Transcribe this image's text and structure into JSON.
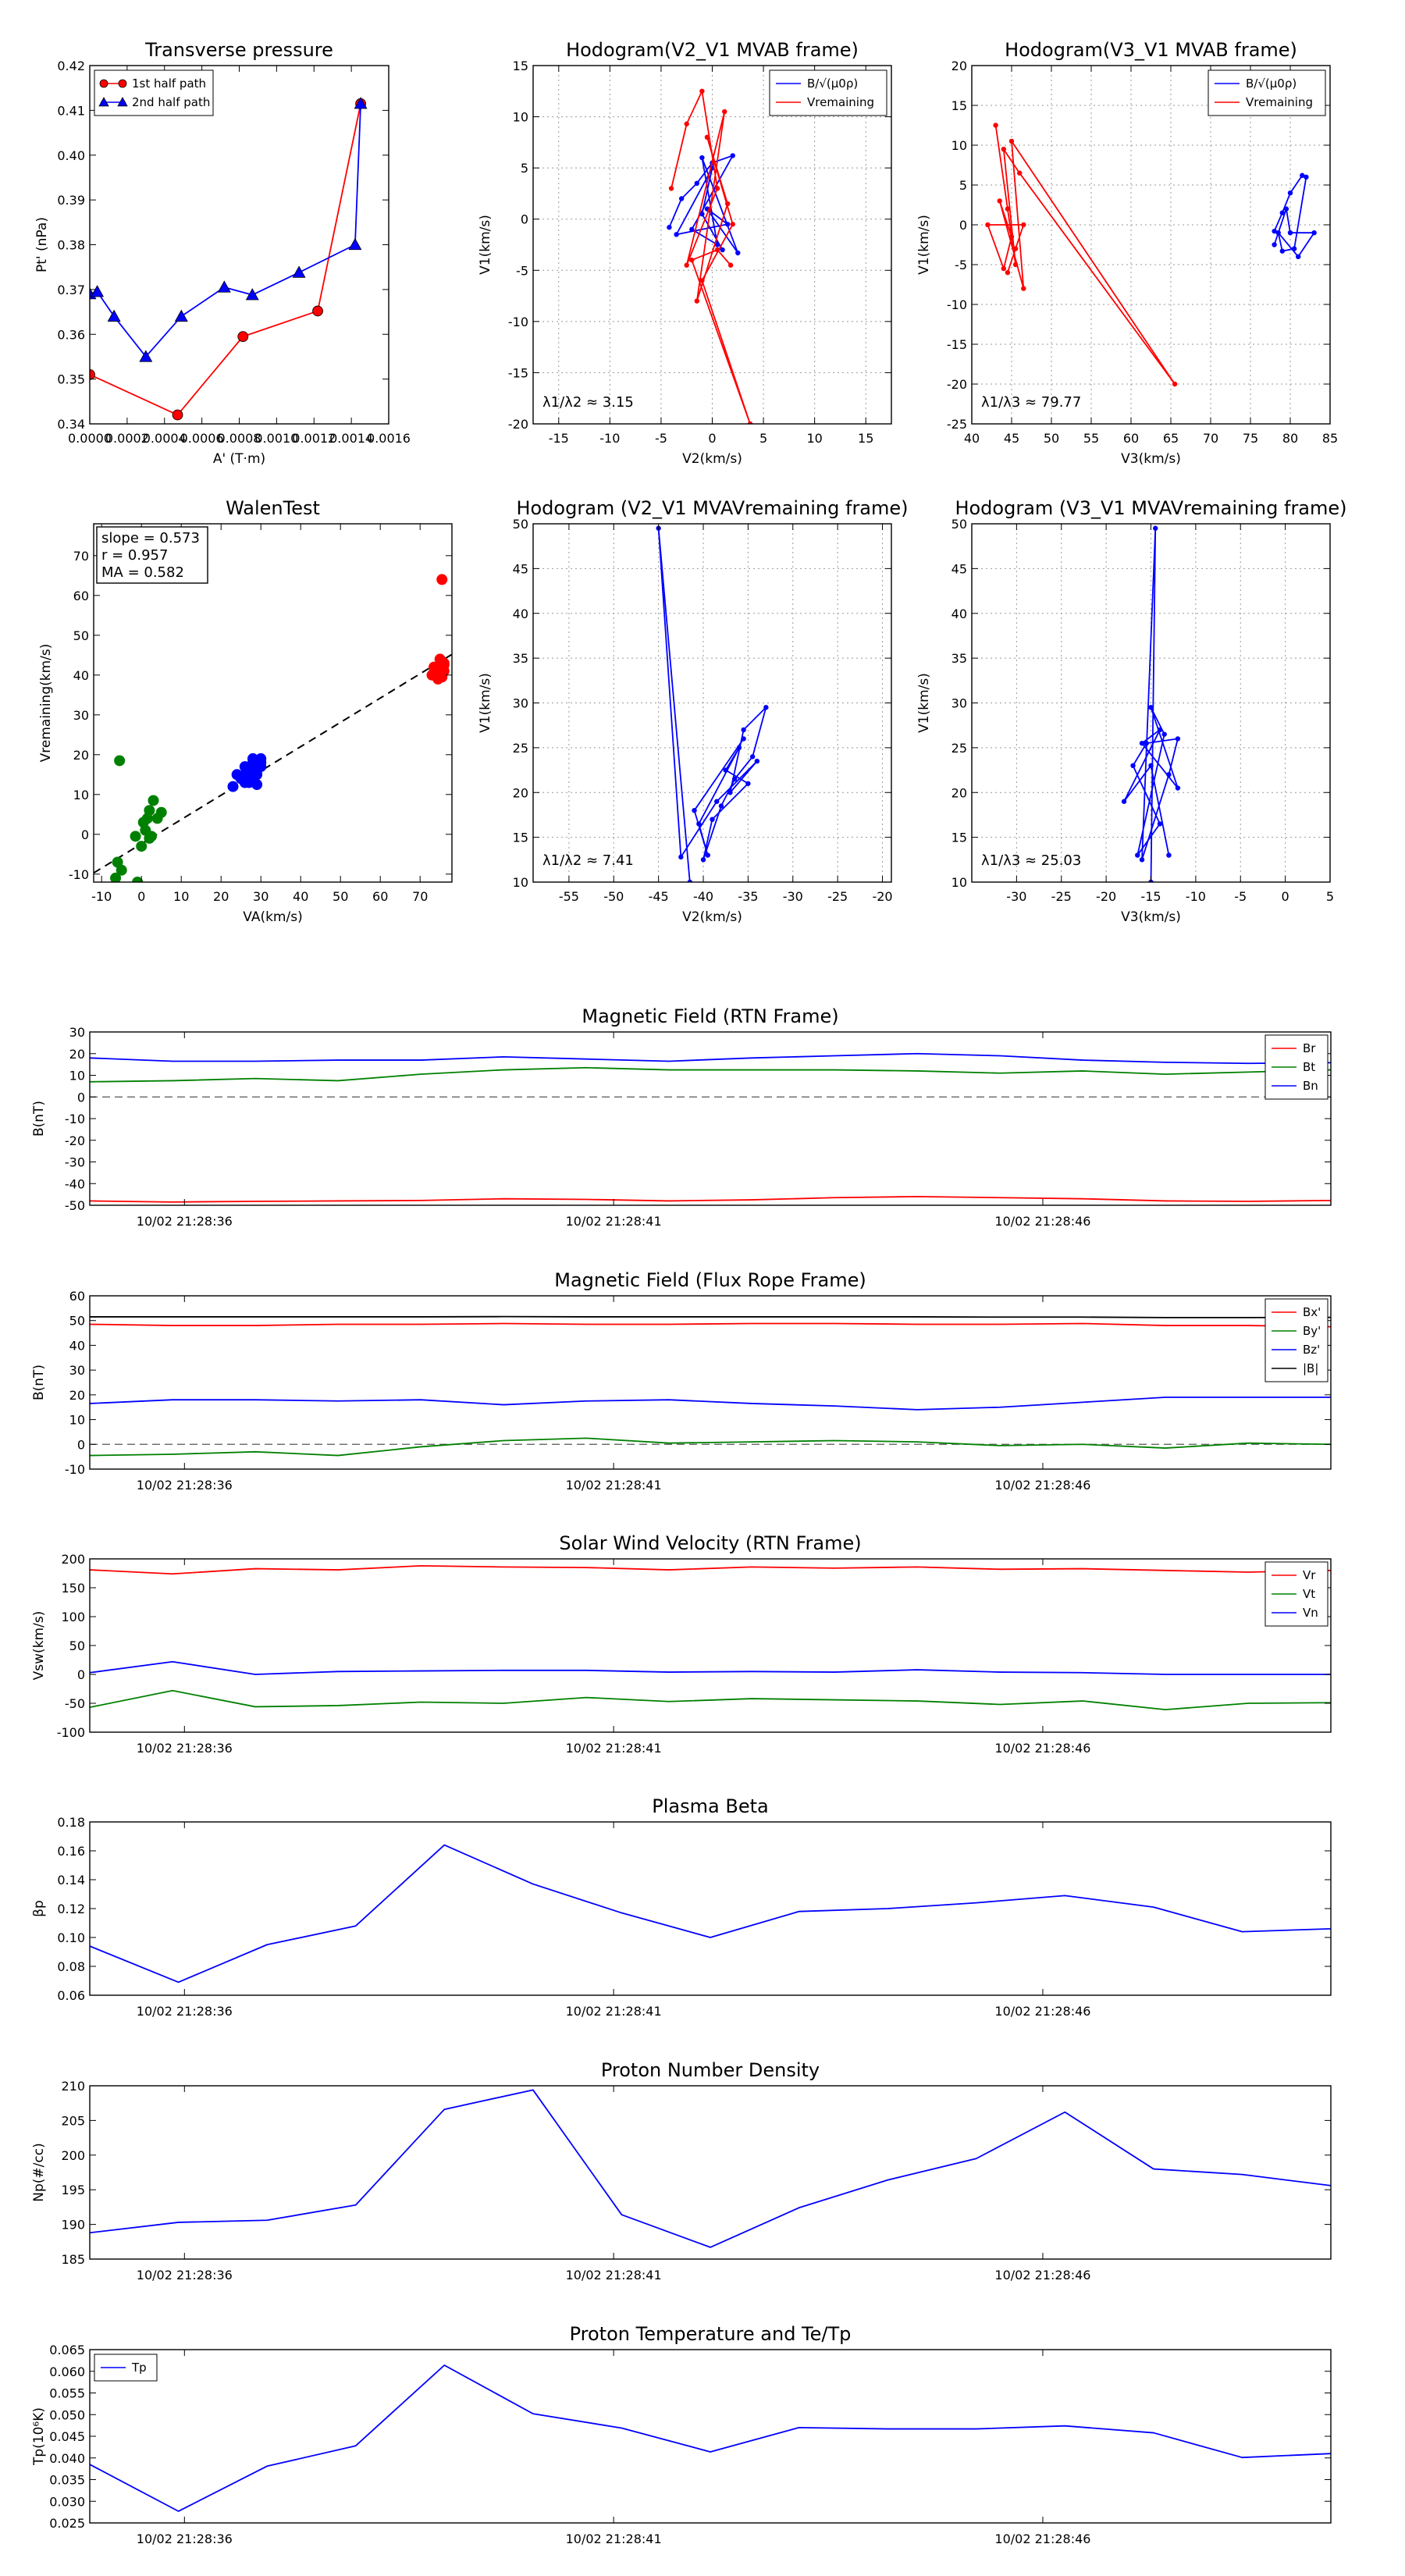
{
  "figure": {
    "background": "#ffffff"
  },
  "colors": {
    "red": "#ff0000",
    "green": "#008000",
    "blue": "#0000ff",
    "black": "#000000",
    "grid": "#b0b0b0"
  },
  "chart_data": [
    {
      "id": "transverse-pressure",
      "type": "line",
      "title": "Transverse pressure",
      "xlabel": "A' (T·m)",
      "ylabel": "Pt' (nPa)",
      "xlim": [
        0,
        0.0016
      ],
      "ylim": [
        0.34,
        0.42
      ],
      "xticks": [
        "0.0000",
        "0.0002",
        "0.0004",
        "0.0006",
        "0.0008",
        "0.0010",
        "0.0012",
        "0.0014",
        "0.0016"
      ],
      "yticks": [
        "0.34",
        "0.35",
        "0.36",
        "0.37",
        "0.38",
        "0.39",
        "0.40",
        "0.41",
        "0.42"
      ],
      "legend": {
        "placement": "top-left",
        "entries": [
          "1st half path",
          "2nd half path"
        ]
      },
      "series": [
        {
          "name": "1st half path",
          "color": "red",
          "marker": "circle",
          "x": [
            0.0,
            0.00047,
            0.00082,
            0.00122,
            0.00145
          ],
          "y": [
            0.351,
            0.342,
            0.3595,
            0.3652,
            0.4115
          ]
        },
        {
          "name": "2nd half path",
          "color": "blue",
          "marker": "triangle",
          "x": [
            0.0,
            4e-05,
            0.00013,
            0.0003,
            0.00049,
            0.00072,
            0.00087,
            0.00112,
            0.00142,
            0.00145
          ],
          "y": [
            0.369,
            0.3695,
            0.364,
            0.355,
            0.364,
            0.3705,
            0.3688,
            0.3738,
            0.38,
            0.4115
          ]
        }
      ]
    },
    {
      "id": "hodogram-v2-v1-mvab",
      "type": "line",
      "title": "Hodogram(V2_V1 MVAB frame)",
      "xlabel": "V2(km/s)",
      "ylabel": "V1(km/s)",
      "xlim": [
        -17.5,
        17.5
      ],
      "ylim": [
        -20,
        15
      ],
      "xticks": [
        "-15",
        "-10",
        "-5",
        "0",
        "5",
        "10",
        "15"
      ],
      "yticks": [
        "-20",
        "-15",
        "-10",
        "-5",
        "0",
        "5",
        "10",
        "15"
      ],
      "grid": true,
      "annotation": "λ1/λ2 ≈ 3.15",
      "legend": {
        "placement": "top-right",
        "entries": [
          "B/√(μ0ρ)",
          "Vremaining"
        ]
      },
      "series": [
        {
          "name": "B/√(μ0ρ)",
          "color": "blue",
          "x": [
            -4.2,
            -3,
            -1.5,
            0,
            2,
            -2,
            0.5,
            -1,
            2.5,
            -0.5,
            1.5,
            -3.5,
            0,
            -1,
            1
          ],
          "y": [
            -0.8,
            2,
            3.5,
            5.5,
            6.2,
            -1,
            -2.5,
            6,
            -3.3,
            1,
            -0.5,
            -1.5,
            5,
            0.5,
            -3
          ]
        },
        {
          "name": "Vremaining",
          "color": "red",
          "x": [
            -4,
            -2.5,
            -1,
            0.5,
            -2.5,
            1.2,
            -1.5,
            1.5,
            -0.5,
            2,
            -1,
            3.7,
            -2,
            0.5,
            1.8
          ],
          "y": [
            3,
            9.3,
            12.5,
            3,
            -4.5,
            10.5,
            -8,
            1.5,
            8,
            -0.5,
            -6,
            -20,
            -4,
            -3,
            -4.5
          ]
        }
      ]
    },
    {
      "id": "hodogram-v3-v1-mvab",
      "type": "line",
      "title": "Hodogram(V3_V1 MVAB frame)",
      "xlabel": "V3(km/s)",
      "ylabel": "V1(km/s)",
      "xlim": [
        40,
        85
      ],
      "ylim": [
        -25,
        20
      ],
      "xticks": [
        "40",
        "45",
        "50",
        "55",
        "60",
        "65",
        "70",
        "75",
        "80",
        "85"
      ],
      "yticks": [
        "-25",
        "-20",
        "-15",
        "-10",
        "-5",
        "0",
        "5",
        "10",
        "15",
        "20"
      ],
      "grid": true,
      "annotation": "λ1/λ3 ≈ 79.77",
      "legend": {
        "placement": "top-right",
        "entries": [
          "B/√(μ0ρ)",
          "Vremaining"
        ]
      },
      "series": [
        {
          "name": "B/√(μ0ρ)",
          "color": "blue",
          "x": [
            78,
            79,
            80,
            81.5,
            82,
            80.5,
            79,
            78.5,
            81,
            83,
            80,
            79.5,
            78
          ],
          "y": [
            -0.8,
            1.5,
            4,
            6.2,
            6,
            -3,
            -3.3,
            -1,
            -4,
            -1,
            -1,
            2,
            -2.5
          ]
        },
        {
          "name": "Vremaining",
          "color": "red",
          "x": [
            43,
            44.5,
            45.5,
            44,
            46,
            65.5,
            45,
            46.5,
            43.5,
            45,
            44,
            42,
            46.5,
            44.5,
            45.5
          ],
          "y": [
            12.5,
            2,
            -5,
            9.5,
            6.5,
            -20,
            10.5,
            -8,
            3,
            -1.5,
            -5.5,
            0,
            0,
            -6,
            -3
          ]
        }
      ]
    },
    {
      "id": "walen-test",
      "type": "scatter",
      "title": "WalenTest",
      "xlabel": "VA(km/s)",
      "ylabel": "Vremaining(km/s)",
      "xlim": [
        -12,
        78
      ],
      "ylim": [
        -12,
        78
      ],
      "xticks": [
        "-10",
        "0",
        "10",
        "20",
        "30",
        "40",
        "50",
        "60",
        "70"
      ],
      "yticks": [
        "-10",
        "0",
        "10",
        "20",
        "30",
        "40",
        "50",
        "60",
        "70"
      ],
      "annotation_lines": [
        "slope = 0.573",
        "r = 0.957",
        "MA = 0.582"
      ],
      "fit_line": {
        "x": [
          -12,
          78
        ],
        "y": [
          -9.7,
          45.2
        ]
      },
      "series": [
        {
          "name": "green",
          "color": "green",
          "x": [
            -5.5,
            -6,
            -5,
            3,
            4,
            5,
            2,
            1,
            0.5,
            0,
            -1.5,
            1.5,
            2.5,
            -6.5,
            -1,
            2
          ],
          "y": [
            18.5,
            -7,
            -9,
            8.5,
            4,
            5.5,
            -1,
            1,
            3,
            -3,
            -0.5,
            4,
            -0.5,
            -11,
            -12,
            6
          ]
        },
        {
          "name": "blue",
          "color": "blue",
          "x": [
            23,
            24,
            26,
            28,
            29,
            30,
            27,
            26,
            28,
            29,
            30,
            25,
            27,
            28,
            26,
            29,
            30
          ],
          "y": [
            12,
            15,
            17,
            18,
            16,
            19,
            13,
            15,
            14,
            12.5,
            17,
            14,
            16,
            19,
            13,
            15,
            18
          ]
        },
        {
          "name": "red",
          "color": "red",
          "x": [
            73,
            74,
            75,
            76,
            75.5,
            74.5,
            73.5,
            76,
            75,
            74,
            75.5,
            76
          ],
          "y": [
            40,
            41,
            42,
            43,
            64,
            39,
            42,
            41,
            44,
            40.5,
            39.5,
            42.5
          ]
        }
      ]
    },
    {
      "id": "hodogram-v2-v1-mvav",
      "type": "line",
      "title": "Hodogram (V2_V1 MVAVremaining frame)",
      "xlabel": "V2(km/s)",
      "ylabel": "V1(km/s)",
      "xlim": [
        -59,
        -19
      ],
      "ylim": [
        10,
        50
      ],
      "xticks": [
        "-55",
        "-50",
        "-45",
        "-40",
        "-35",
        "-30",
        "-25",
        "-20"
      ],
      "yticks": [
        "10",
        "15",
        "20",
        "25",
        "30",
        "35",
        "40",
        "45",
        "50"
      ],
      "grid": true,
      "annotation": "λ1/λ2 ≈ 7.41",
      "series": [
        {
          "name": "B/√(μ0ρ)",
          "color": "blue",
          "x": [
            -41.5,
            -45,
            -42.5,
            -38.5,
            -34,
            -37,
            -35.5,
            -33,
            -34.5,
            -36.5,
            -38,
            -40,
            -39,
            -35,
            -37.5,
            -36,
            -40.5,
            -39.5,
            -41,
            -35.5
          ],
          "y": [
            10,
            49.5,
            12.8,
            19,
            23.5,
            20,
            27,
            29.5,
            24,
            21.5,
            18.5,
            12.5,
            17,
            21,
            22.5,
            25,
            16.5,
            13,
            18,
            26
          ]
        }
      ]
    },
    {
      "id": "hodogram-v3-v1-mvav",
      "type": "line",
      "title": "Hodogram (V3_V1 MVAVremaining frame)",
      "xlabel": "V3(km/s)",
      "ylabel": "V1(km/s)",
      "xlim": [
        -35,
        5
      ],
      "ylim": [
        10,
        50
      ],
      "xticks": [
        "-30",
        "-25",
        "-20",
        "-15",
        "-10",
        "-5",
        "0",
        "5"
      ],
      "yticks": [
        "10",
        "15",
        "20",
        "25",
        "30",
        "35",
        "40",
        "45",
        "50"
      ],
      "grid": true,
      "annotation": "λ1/λ3 ≈ 25.03",
      "series": [
        {
          "name": "B/√(μ0ρ)",
          "color": "blue",
          "x": [
            -15,
            -14.5,
            -16,
            -13,
            -12,
            -15.5,
            -17,
            -14,
            -16.5,
            -13.5,
            -15,
            -12,
            -16,
            -14,
            -18,
            -15,
            -13
          ],
          "y": [
            10,
            49.5,
            12.5,
            22,
            26,
            25.5,
            23,
            16.5,
            13,
            26.5,
            29.5,
            20.5,
            25.5,
            27,
            19,
            23,
            13
          ]
        }
      ]
    },
    {
      "id": "magnetic-field-rtn",
      "type": "line",
      "title": "Magnetic Field (RTN Frame)",
      "ylabel": "B(nT)",
      "ylim": [
        -50,
        30
      ],
      "yticks": [
        "30",
        "20",
        "10",
        "0",
        "-10",
        "-20",
        "-30",
        "-40",
        "-50"
      ],
      "xtick_labels": [
        "10/02 21:28:36",
        "10/02 21:28:41",
        "10/02 21:28:46"
      ],
      "zero_line": true,
      "legend": {
        "placement": "top-right",
        "entries": [
          "Br",
          "Bt",
          "Bn"
        ]
      },
      "series": [
        {
          "name": "Br",
          "color": "red",
          "values": [
            -48,
            -48.5,
            -48.2,
            -48,
            -47.8,
            -47,
            -47.3,
            -48,
            -47.5,
            -46.5,
            -46,
            -46.5,
            -47,
            -48,
            -48.2,
            -47.8
          ]
        },
        {
          "name": "Bt",
          "color": "green",
          "values": [
            7,
            7.5,
            8.5,
            7.5,
            10.5,
            12.5,
            13.5,
            12.5,
            12.5,
            12.5,
            12,
            11,
            12,
            10.5,
            11.5,
            12.5
          ]
        },
        {
          "name": "Bn",
          "color": "blue",
          "values": [
            18,
            16.5,
            16.5,
            17,
            17,
            18.5,
            17.5,
            16.5,
            18,
            19,
            20,
            19,
            17,
            16,
            15.5,
            15.8
          ]
        }
      ]
    },
    {
      "id": "magnetic-field-flux-rope",
      "type": "line",
      "title": "Magnetic Field (Flux Rope Frame)",
      "ylabel": "B(nT)",
      "ylim": [
        -10,
        60
      ],
      "yticks": [
        "60",
        "50",
        "40",
        "30",
        "20",
        "10",
        "0",
        "-10"
      ],
      "xtick_labels": [
        "10/02 21:28:36",
        "10/02 21:28:41",
        "10/02 21:28:46"
      ],
      "zero_line": true,
      "legend": {
        "placement": "top-right",
        "entries": [
          "Bx'",
          "By'",
          "Bz'",
          "|B|"
        ]
      },
      "series": [
        {
          "name": "Bx'",
          "color": "red",
          "values": [
            48.5,
            48,
            48,
            48.5,
            48.5,
            48.8,
            48.5,
            48.5,
            48.8,
            48.8,
            48.5,
            48.5,
            48.8,
            48,
            48,
            47.5
          ]
        },
        {
          "name": "By'",
          "color": "green",
          "values": [
            -4.5,
            -4,
            -3,
            -4.5,
            -1,
            1.5,
            2.5,
            0.5,
            1,
            1.5,
            1,
            -0.5,
            0,
            -1.5,
            0.5,
            0
          ]
        },
        {
          "name": "Bz'",
          "color": "blue",
          "values": [
            16.5,
            18,
            18,
            17.5,
            18,
            16,
            17.5,
            18,
            16.5,
            15.5,
            14,
            15,
            17,
            19,
            19,
            19
          ]
        },
        {
          "name": "|B|",
          "color": "black",
          "values": [
            51.5,
            51.5,
            51.5,
            51.5,
            51.5,
            51.6,
            51.5,
            51.5,
            51.5,
            51.5,
            51.5,
            51.4,
            51.4,
            51.2,
            51.2,
            51.3
          ]
        }
      ]
    },
    {
      "id": "solar-wind-velocity",
      "type": "line",
      "title": "Solar Wind Velocity (RTN Frame)",
      "ylabel": "Vsw(km/s)",
      "ylim": [
        -100,
        200
      ],
      "yticks": [
        "200",
        "150",
        "100",
        "50",
        "0",
        "-50",
        "-100"
      ],
      "xtick_labels": [
        "10/02 21:28:36",
        "10/02 21:28:41",
        "10/02 21:28:46"
      ],
      "legend": {
        "placement": "top-right",
        "entries": [
          "Vr",
          "Vt",
          "Vn"
        ]
      },
      "series": [
        {
          "name": "Vr",
          "color": "red",
          "values": [
            181,
            174,
            183,
            181,
            188,
            186,
            185,
            181,
            186,
            184,
            186,
            182,
            183,
            180,
            177,
            180
          ]
        },
        {
          "name": "Vt",
          "color": "green",
          "values": [
            -57,
            -28,
            -56,
            -54,
            -48,
            -50,
            -40,
            -47,
            -42,
            -44,
            -46,
            -52,
            -46,
            -61,
            -50,
            -49
          ]
        },
        {
          "name": "Vn",
          "color": "blue",
          "values": [
            3,
            22,
            0,
            5,
            6,
            7,
            7,
            4,
            5,
            4,
            8,
            4,
            3,
            0,
            0,
            0
          ]
        }
      ]
    },
    {
      "id": "plasma-beta",
      "type": "line",
      "title": "Plasma Beta",
      "ylabel": "βp",
      "ylim": [
        0.06,
        0.18
      ],
      "yticks": [
        "0.18",
        "0.16",
        "0.14",
        "0.12",
        "0.10",
        "0.08",
        "0.06"
      ],
      "xtick_labels": [
        "10/02 21:28:36",
        "10/02 21:28:41",
        "10/02 21:28:46"
      ],
      "series": [
        {
          "name": "βp",
          "color": "blue",
          "values": [
            0.094,
            0.069,
            0.095,
            0.108,
            0.164,
            0.137,
            0.117,
            0.1,
            0.118,
            0.12,
            0.124,
            0.129,
            0.121,
            0.104,
            0.106
          ]
        }
      ]
    },
    {
      "id": "proton-number-density",
      "type": "line",
      "title": "Proton Number Density",
      "ylabel": "Np(#/cc)",
      "ylim": [
        185,
        210
      ],
      "yticks": [
        "210",
        "205",
        "200",
        "195",
        "190",
        "185"
      ],
      "xtick_labels": [
        "10/02 21:28:36",
        "10/02 21:28:41",
        "10/02 21:28:46"
      ],
      "series": [
        {
          "name": "Np",
          "color": "blue",
          "values": [
            188.8,
            190.3,
            190.6,
            192.8,
            206.6,
            209.4,
            191.4,
            186.7,
            192.4,
            196.4,
            199.5,
            206.2,
            198.0,
            197.2,
            195.6
          ]
        }
      ]
    },
    {
      "id": "proton-temperature",
      "type": "line",
      "title": "Proton Temperature and Te/Tp",
      "ylabel": "Tp(10⁶K)",
      "ylim": [
        0.025,
        0.065
      ],
      "yticks": [
        "0.065",
        "0.060",
        "0.055",
        "0.050",
        "0.045",
        "0.040",
        "0.035",
        "0.030",
        "0.025"
      ],
      "xtick_labels": [
        "10/02 21:28:36",
        "10/02 21:28:41",
        "10/02 21:28:46"
      ],
      "legend": {
        "placement": "top-left",
        "entries": [
          "Tp"
        ]
      },
      "series": [
        {
          "name": "Tp",
          "color": "blue",
          "values": [
            0.0385,
            0.0277,
            0.0381,
            0.0428,
            0.0614,
            0.0502,
            0.0469,
            0.0414,
            0.047,
            0.0467,
            0.0467,
            0.0474,
            0.0458,
            0.0401,
            0.041
          ]
        }
      ]
    }
  ]
}
